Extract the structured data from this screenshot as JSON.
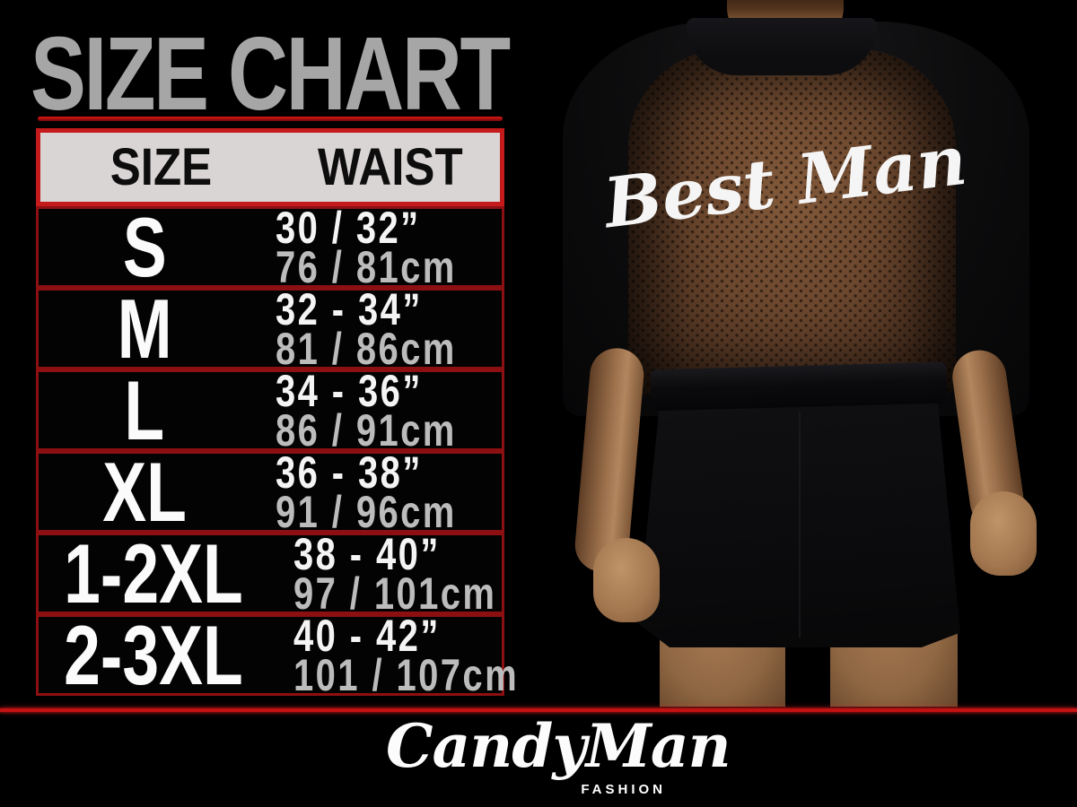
{
  "title": "SIZE CHART",
  "table": {
    "headers": [
      "SIZE",
      "WAIST"
    ],
    "rows": [
      {
        "size": "S",
        "waist_in": "30 / 32”",
        "waist_cm": "76 / 81cm"
      },
      {
        "size": "M",
        "waist_in": "32 - 34”",
        "waist_cm": "81 / 86cm"
      },
      {
        "size": "L",
        "waist_in": "34 - 36”",
        "waist_cm": "86 / 91cm"
      },
      {
        "size": "XL",
        "waist_in": "36 - 38”",
        "waist_cm": "91 / 96cm"
      },
      {
        "size": "1-2XL",
        "waist_in": "38 - 40”",
        "waist_cm": "97 / 101cm"
      },
      {
        "size": "2-3XL",
        "waist_in": "40 - 42”",
        "waist_cm": "101 / 107cm"
      }
    ]
  },
  "photo": {
    "back_text": "Best Man"
  },
  "brand": {
    "name": "CandyMan",
    "tagline": "FASHION"
  },
  "colors": {
    "background": "#000000",
    "title_gray": "#a6a6a6",
    "accent_red": "#c51a1b",
    "row_border_red": "#8c1011",
    "header_bg": "#d9d5d4",
    "waist_cm_gray": "#bdbcbc",
    "mesh_brown": "#6b472e",
    "skin_tan": "#9a6f4a"
  }
}
